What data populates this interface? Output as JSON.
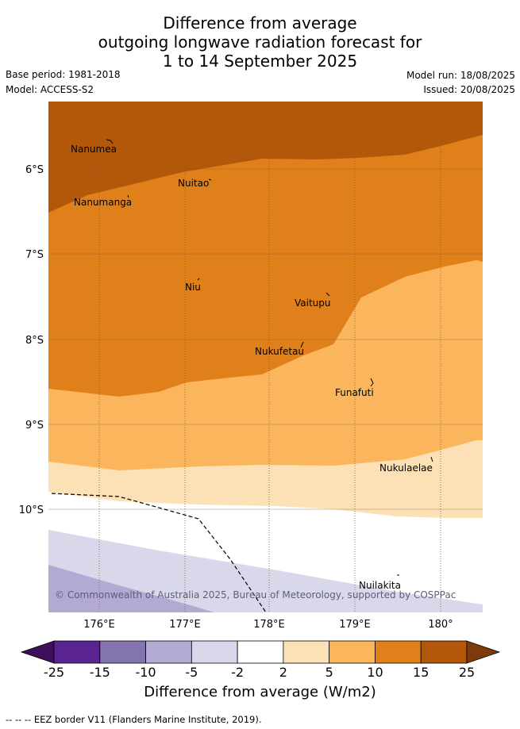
{
  "header": {
    "title_line1": "Difference from average",
    "title_line2": "outgoing longwave radiation forecast for",
    "title_line3": "1 to 14 September 2025",
    "base_period": "Base period: 1981-2018",
    "model": "Model: ACCESS-S2",
    "model_run": "Model run: 18/08/2025",
    "issued": "Issued: 20/08/2025"
  },
  "map": {
    "lat_labels": [
      "6°S",
      "7°S",
      "8°S",
      "9°S",
      "10°S"
    ],
    "lon_labels": [
      "176°E",
      "177°E",
      "178°E",
      "179°E",
      "180°"
    ],
    "places": [
      {
        "name": "Nanumea"
      },
      {
        "name": "Nuitao"
      },
      {
        "name": "Nanumanga"
      },
      {
        "name": "Niu"
      },
      {
        "name": "Vaitupu"
      },
      {
        "name": "Nukufetau"
      },
      {
        "name": "Funafuti"
      },
      {
        "name": "Nukulaelae"
      },
      {
        "name": "Nuilakita"
      }
    ],
    "copyright": "© Commonwealth of Australia 2025, Bureau of Meteorology, supported by COSPPac"
  },
  "colorbar": {
    "ticks": [
      "-25",
      "-15",
      "-10",
      "-5",
      "-2",
      "2",
      "5",
      "10",
      "15",
      "25"
    ],
    "colors": [
      "#3d0f5c",
      "#5a2590",
      "#8373ae",
      "#b2aad2",
      "#d8d8ea",
      "#ffffff",
      "#fde1b6",
      "#fbb65d",
      "#e0801a",
      "#b3580a",
      "#7d3b0c"
    ],
    "label": "Difference from average (W/m2)"
  },
  "footnote": "--  --  -- EEZ border V11 (Flanders Marine Institute, 2019)."
}
